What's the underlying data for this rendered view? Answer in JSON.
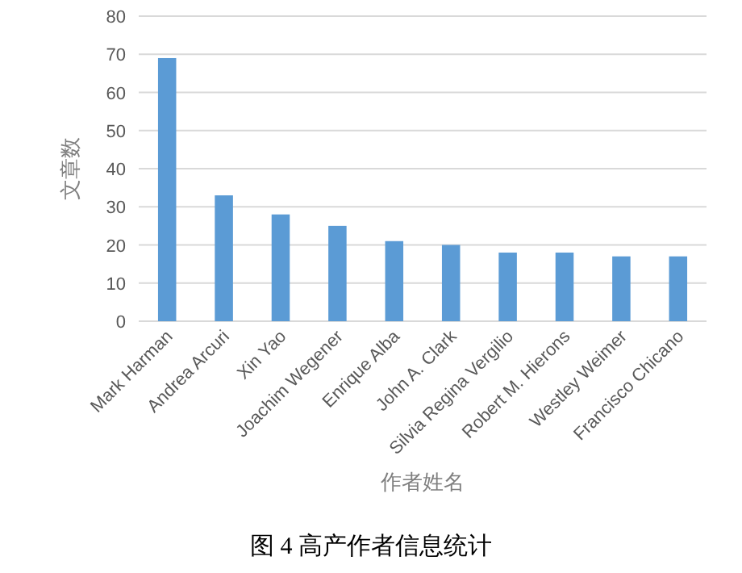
{
  "chart_data": {
    "type": "bar",
    "xlabel": "作者姓名",
    "ylabel": "文章数",
    "categories": [
      "Mark Harman",
      "Andrea Arcuri",
      "Xin Yao",
      "Joachim Wegener",
      "Enrique Alba",
      "John A. Clark",
      "Silvia Regina Vergilio",
      "Robert M. Hierons",
      "Westley Weimer",
      "Francisco Chicano"
    ],
    "values": [
      69,
      33,
      28,
      25,
      21,
      20,
      18,
      18,
      17,
      17
    ],
    "color": "#5b9bd5",
    "ylim": [
      0,
      80
    ],
    "yticks": [
      0,
      10,
      20,
      30,
      40,
      50,
      60,
      70,
      80
    ],
    "grid": "y",
    "annotations": [
      "图 4  高产作者信息统计"
    ]
  }
}
